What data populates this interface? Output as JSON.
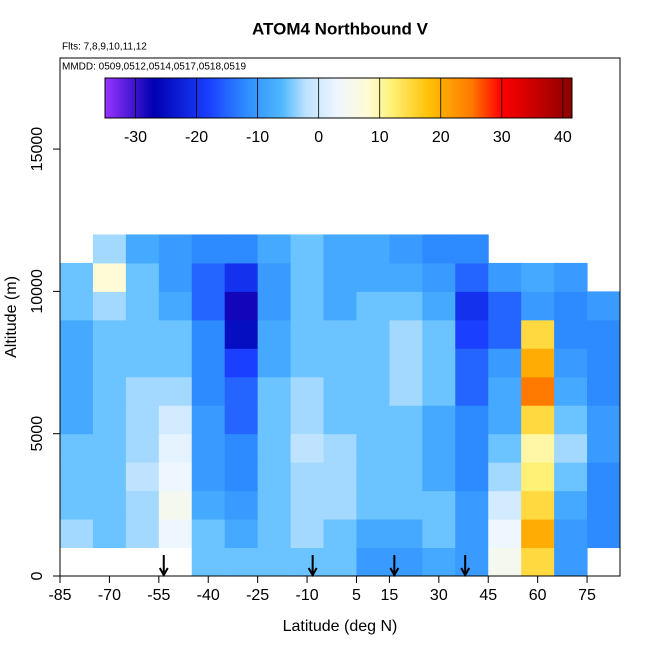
{
  "chart_data": {
    "type": "heatmap",
    "title": "ATOM4 Northbound V",
    "subtitle": "Flts: 7,8,9,10,11,12",
    "annotation": "MMDD: 0509,0512,0514,0517,0518,0519",
    "x_label": "Latitude (deg N)",
    "y_label": "Altitude (m)",
    "xlim": [
      -85,
      85
    ],
    "ylim": [
      0,
      18200
    ],
    "xticks": [
      -85,
      -70,
      -55,
      -40,
      -25,
      -10,
      5,
      15,
      30,
      45,
      60,
      75
    ],
    "yticks": [
      0,
      5000,
      10000,
      15000
    ],
    "xbins": [
      -85,
      -75,
      -65,
      -55,
      -45,
      -35,
      -25,
      -15,
      -5,
      5,
      15,
      25,
      35,
      45,
      55,
      65,
      75,
      85
    ],
    "ybins": [
      0,
      1000,
      2000,
      3000,
      4000,
      5000,
      6000,
      7000,
      8000,
      9000,
      10000,
      11000,
      12000
    ],
    "z": [
      [
        null,
        null,
        null,
        null,
        -5,
        -5,
        -5,
        -5,
        -5,
        -10,
        -10,
        -8,
        -10,
        5,
        15,
        -10,
        null
      ],
      [
        -3,
        -5,
        -3,
        3,
        -5,
        -8,
        -5,
        -3,
        -5,
        -8,
        -8,
        -5,
        -10,
        3,
        20,
        -10,
        -12
      ],
      [
        -5,
        -5,
        -3,
        5,
        -8,
        -10,
        -5,
        -3,
        -3,
        -5,
        -5,
        -5,
        -10,
        0,
        15,
        -8,
        -12
      ],
      [
        -5,
        -5,
        -2,
        3,
        -10,
        -12,
        -5,
        -3,
        -3,
        -5,
        -5,
        -8,
        -12,
        -3,
        12,
        -5,
        -12
      ],
      [
        -5,
        -5,
        -3,
        2,
        -10,
        -12,
        -5,
        -2,
        -3,
        -5,
        -5,
        -8,
        -12,
        -5,
        10,
        -3,
        -10
      ],
      [
        -8,
        -5,
        -3,
        0,
        -10,
        -15,
        -5,
        -3,
        -5,
        -5,
        -5,
        -8,
        -12,
        -8,
        15,
        -5,
        -10
      ],
      [
        -8,
        -5,
        -3,
        -3,
        -12,
        -15,
        -5,
        -3,
        -5,
        -5,
        -3,
        -5,
        -15,
        -8,
        25,
        -8,
        -12
      ],
      [
        -8,
        -5,
        -5,
        -5,
        -12,
        -18,
        -8,
        -5,
        -5,
        -5,
        -3,
        -5,
        -15,
        -10,
        20,
        -10,
        -12
      ],
      [
        -8,
        -5,
        -5,
        -5,
        -12,
        -25,
        -8,
        -5,
        -5,
        -5,
        -3,
        -5,
        -18,
        -15,
        15,
        -12,
        -12
      ],
      [
        -5,
        -3,
        -5,
        -8,
        -15,
        -28,
        -10,
        -5,
        -8,
        -5,
        -5,
        -8,
        -20,
        -15,
        -10,
        -12,
        -10
      ],
      [
        -5,
        8,
        -5,
        -10,
        -15,
        -20,
        -10,
        -5,
        -8,
        -8,
        -8,
        -10,
        -15,
        -10,
        -8,
        -10,
        null
      ],
      [
        null,
        -3,
        -8,
        -10,
        -12,
        -12,
        -8,
        -5,
        -8,
        -8,
        -10,
        -12,
        -12,
        null,
        null,
        null,
        null
      ]
    ],
    "colorbar": {
      "range": [
        -35,
        41.5
      ],
      "ticks": [
        -30,
        -20,
        -10,
        0,
        10,
        20,
        30,
        40
      ],
      "stops": [
        {
          "value": -35,
          "color": "#9933ff"
        },
        {
          "value": -27,
          "color": "#0000b0"
        },
        {
          "value": -18,
          "color": "#1a3fff"
        },
        {
          "value": -12,
          "color": "#2e8bff"
        },
        {
          "value": -6,
          "color": "#4fb8ff"
        },
        {
          "value": -2,
          "color": "#bfe3ff"
        },
        {
          "value": 3,
          "color": "#eef6ff"
        },
        {
          "value": 8,
          "color": "#fffbd6"
        },
        {
          "value": 12,
          "color": "#fff176"
        },
        {
          "value": 18,
          "color": "#ffc107"
        },
        {
          "value": 25,
          "color": "#ff7a00"
        },
        {
          "value": 30,
          "color": "#ff0000"
        },
        {
          "value": 41.5,
          "color": "#8b0000"
        }
      ]
    },
    "arrows": [
      -53.5,
      -8.3,
      16.5,
      38
    ]
  }
}
